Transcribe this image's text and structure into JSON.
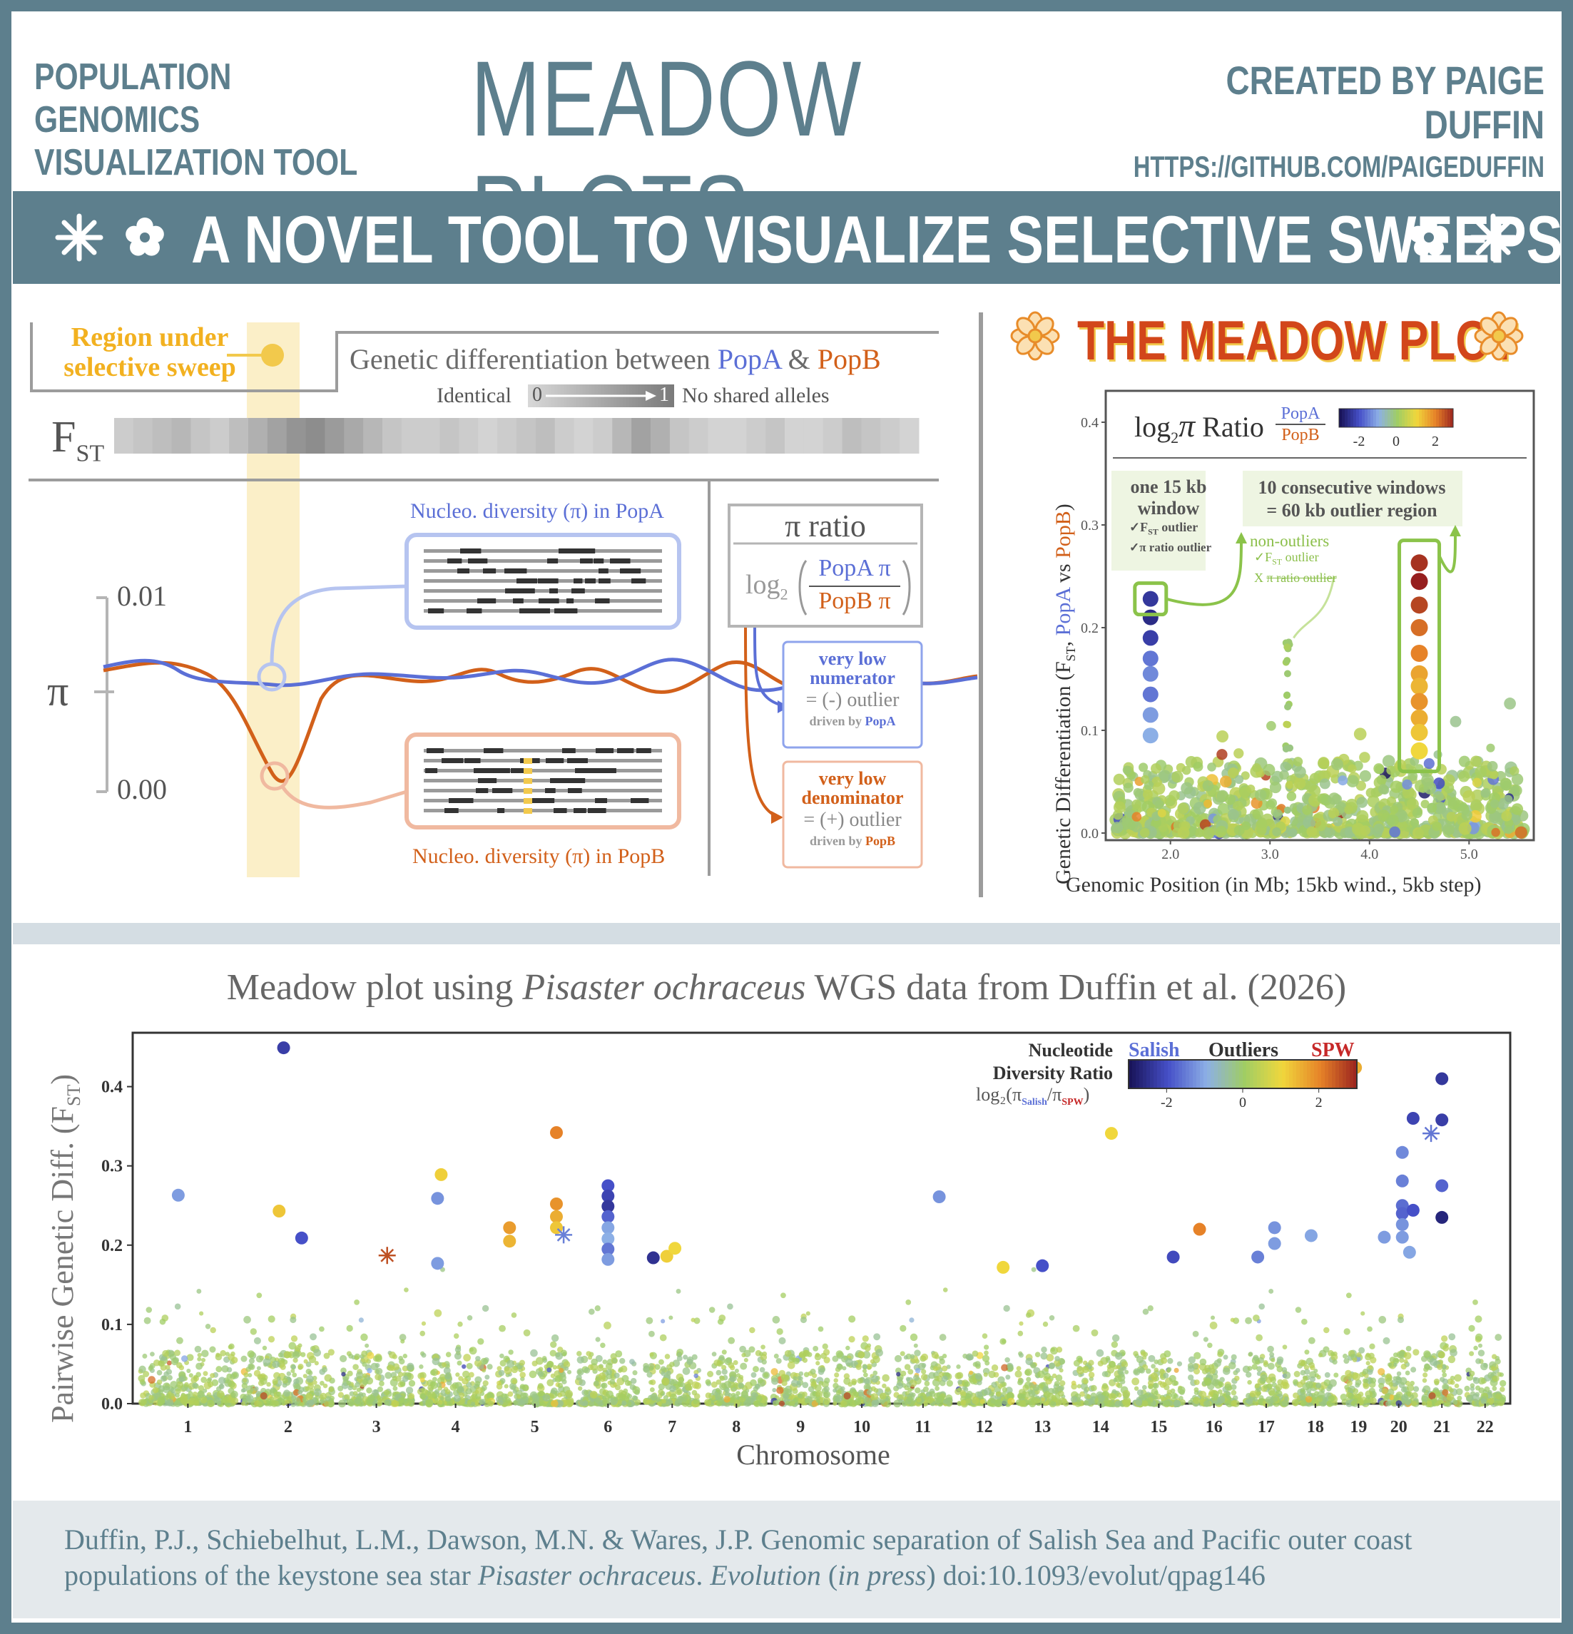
{
  "header": {
    "left_line1": "POPULATION GENOMICS",
    "left_line2": "VISUALIZATION TOOL",
    "title": "MEADOW PLOTS",
    "right_line1": "CREATED BY PAIGE DUFFIN",
    "right_line2": "HTTPS://GITHUB.COM/PAIGEDUFFIN"
  },
  "banner": {
    "text": "A NOVEL TOOL TO VISUALIZE SELECTIVE SWEEPS"
  },
  "colors": {
    "slate": "#5d7f8d",
    "popA": "#5b6fd6",
    "popB": "#d2601a",
    "sweep": "#f5d96b",
    "green": "#9ccc5a"
  },
  "diagram": {
    "region_label_1": "Region under",
    "region_label_2": "selective sweep",
    "fst_heading_prefix": "Genetic differentiation between",
    "popA": "PopA",
    "amp": "&",
    "popB": "PopB",
    "identical": "Identical",
    "zero": "0",
    "one": "1",
    "no_shared": "No shared alleles",
    "fst_label": "F",
    "fst_sub": "ST",
    "fst_shades": [
      0.15,
      0.2,
      0.25,
      0.3,
      0.2,
      0.15,
      0.25,
      0.35,
      0.45,
      0.55,
      0.6,
      0.5,
      0.4,
      0.3,
      0.2,
      0.15,
      0.15,
      0.2,
      0.15,
      0.1,
      0.15,
      0.2,
      0.25,
      0.15,
      0.1,
      0.15,
      0.3,
      0.45,
      0.35,
      0.2,
      0.15,
      0.1,
      0.1,
      0.15,
      0.2,
      0.1,
      0.1,
      0.15,
      0.25,
      0.2,
      0.15,
      0.1
    ],
    "pi_axis_top": "0.01",
    "pi_axis_bottom": "0.00",
    "pi_symbol": "π",
    "popA_diversity_prefix": "Nucleo. diversity (π) in",
    "popB_diversity_prefix": "Nucleo. diversity (π) in",
    "pi_ratio_title": "π ratio",
    "log2": "log",
    "log2_sub": "2",
    "ratio_num": "PopA π",
    "ratio_den": "PopB π",
    "low_num_1": "very low",
    "low_num_2": "numerator",
    "neg_outlier": "= (-) outlier",
    "driven_by": "driven by",
    "low_den_1": "very low",
    "low_den_2": "denominator",
    "pos_outlier": "= (+) outlier"
  },
  "meadow_example": {
    "title": "THE MEADOW PLOT",
    "legend_prefix": "log",
    "legend_sub": "2",
    "legend_pi": "π",
    "legend_ratio": "Ratio",
    "legend_num": "PopA",
    "legend_den": "PopB",
    "colorbar_ticks": [
      "-2",
      "0",
      "2"
    ],
    "callout_1_line1": "one 15 kb",
    "callout_1_line2": "window",
    "callout_1_check1": "✓F",
    "callout_1_check1_sub": "ST",
    "callout_1_check1_tail": " outlier",
    "callout_1_check2": "✓π ratio outlier",
    "callout_2_line1": "10 consecutive windows",
    "callout_2_line2": "= 60 kb outlier region",
    "nonout_title": "non-outliers",
    "nonout_check1": "✓F",
    "nonout_check1_sub": "ST",
    "nonout_check1_tail": " outlier",
    "nonout_check2_x": "X",
    "nonout_check2": "π ratio outlier",
    "ylabel_prefix": "Genetic Differentiation (F",
    "ylabel_sub": "ST",
    "ylabel_mid": ", ",
    "ylabel_popA": "PopA",
    "ylabel_vs": " vs ",
    "ylabel_popB": "PopB",
    "ylabel_end": ")",
    "xlabel": "Genomic Position (in Mb; 15kb wind., 5kb step)",
    "yticks": [
      "0.0",
      "0.1",
      "0.2",
      "0.3",
      "0.4"
    ],
    "xticks": [
      "2.0",
      "3.0",
      "4.0",
      "5.0"
    ]
  },
  "chart_data": {
    "type": "scatter",
    "title_prefix": "Meadow plot using ",
    "title_species": "Pisaster ochraceus",
    "title_suffix": " WGS data from Duffin et al. (2026)",
    "xlabel": "Chromosome",
    "ylabel_prefix": "Pairwise Genetic Diff. (F",
    "ylabel_sub": "ST",
    "ylabel_end": ")",
    "ylim": [
      0,
      0.45
    ],
    "yticks": [
      "0.0",
      "0.1",
      "0.2",
      "0.3",
      "0.4"
    ],
    "ytick_values": [
      0,
      0.1,
      0.2,
      0.3,
      0.4
    ],
    "categories": [
      "1",
      "2",
      "3",
      "4",
      "5",
      "6",
      "7",
      "8",
      "9",
      "10",
      "11",
      "12",
      "13",
      "14",
      "15",
      "16",
      "17",
      "18",
      "19",
      "20",
      "21",
      "22"
    ],
    "chrom_widths": [
      1.6,
      1.5,
      1.2,
      1.2,
      1.2,
      1.0,
      0.9,
      1.0,
      0.9,
      0.9,
      0.9,
      0.9,
      0.8,
      0.9,
      0.8,
      0.8,
      0.7,
      0.7,
      0.5,
      0.6,
      0.6,
      0.6
    ],
    "legend_title_1": "Nucleotide",
    "legend_title_2": "Diversity Ratio",
    "legend_formula": "log₂(π",
    "legend_formula_salish": "Salish",
    "legend_formula_sep": "/π",
    "legend_formula_spw": "SPW",
    "legend_formula_end": ")",
    "legend_salish": "Salish",
    "legend_outliers": "Outliers",
    "legend_spw": "SPW",
    "colorbar_ticks": [
      "-2",
      "0",
      "2"
    ],
    "outliers": [
      {
        "chrom": 1,
        "pos": 0.4,
        "fst": 0.263,
        "ratio": -1.2
      },
      {
        "chrom": 2,
        "pos": 0.45,
        "fst": 0.449,
        "ratio": -2.3
      },
      {
        "chrom": 2,
        "pos": 0.4,
        "fst": 0.243,
        "ratio": 1.2
      },
      {
        "chrom": 2,
        "pos": 0.65,
        "fst": 0.209,
        "ratio": -2.0
      },
      {
        "chrom": 3,
        "pos": 0.65,
        "fst": 0.187,
        "ratio": 2.5,
        "star": true
      },
      {
        "chrom": 4,
        "pos": 0.25,
        "fst": 0.259,
        "ratio": -1.3
      },
      {
        "chrom": 4,
        "pos": 0.3,
        "fst": 0.289,
        "ratio": 1.1
      },
      {
        "chrom": 4,
        "pos": 0.25,
        "fst": 0.177,
        "ratio": -1.2
      },
      {
        "chrom": 5,
        "pos": 0.15,
        "fst": 0.222,
        "ratio": 1.7
      },
      {
        "chrom": 5,
        "pos": 0.15,
        "fst": 0.205,
        "ratio": 1.4
      },
      {
        "chrom": 5,
        "pos": 0.8,
        "fst": 0.342,
        "ratio": 2.0
      },
      {
        "chrom": 5,
        "pos": 0.8,
        "fst": 0.252,
        "ratio": 1.8
      },
      {
        "chrom": 5,
        "pos": 0.8,
        "fst": 0.236,
        "ratio": 1.5
      },
      {
        "chrom": 5,
        "pos": 0.8,
        "fst": 0.222,
        "ratio": 1.2
      },
      {
        "chrom": 5,
        "pos": 0.9,
        "fst": 0.213,
        "ratio": -1.5,
        "star": true
      },
      {
        "chrom": 6,
        "pos": 0.5,
        "fst": 0.275,
        "ratio": -2.0
      },
      {
        "chrom": 6,
        "pos": 0.5,
        "fst": 0.262,
        "ratio": -2.2
      },
      {
        "chrom": 6,
        "pos": 0.5,
        "fst": 0.249,
        "ratio": -2.4
      },
      {
        "chrom": 6,
        "pos": 0.5,
        "fst": 0.236,
        "ratio": -1.8
      },
      {
        "chrom": 6,
        "pos": 0.5,
        "fst": 0.222,
        "ratio": -1.1
      },
      {
        "chrom": 6,
        "pos": 0.5,
        "fst": 0.208,
        "ratio": -1.0
      },
      {
        "chrom": 6,
        "pos": 0.5,
        "fst": 0.195,
        "ratio": -1.6
      },
      {
        "chrom": 6,
        "pos": 0.5,
        "fst": 0.182,
        "ratio": -1.2
      },
      {
        "chrom": 7,
        "pos": 0.15,
        "fst": 0.184,
        "ratio": -2.5
      },
      {
        "chrom": 7,
        "pos": 0.4,
        "fst": 0.186,
        "ratio": 1.1
      },
      {
        "chrom": 7,
        "pos": 0.55,
        "fst": 0.196,
        "ratio": 1.0
      },
      {
        "chrom": 11,
        "pos": 0.8,
        "fst": 0.261,
        "ratio": -1.3
      },
      {
        "chrom": 12,
        "pos": 0.85,
        "fst": 0.172,
        "ratio": 1.0
      },
      {
        "chrom": 13,
        "pos": 0.5,
        "fst": 0.174,
        "ratio": -2.0
      },
      {
        "chrom": 14,
        "pos": 0.7,
        "fst": 0.341,
        "ratio": 1.0
      },
      {
        "chrom": 15,
        "pos": 0.8,
        "fst": 0.185,
        "ratio": -2.1
      },
      {
        "chrom": 16,
        "pos": 0.2,
        "fst": 0.22,
        "ratio": 2.0
      },
      {
        "chrom": 17,
        "pos": 0.3,
        "fst": 0.185,
        "ratio": -1.5
      },
      {
        "chrom": 17,
        "pos": 0.7,
        "fst": 0.222,
        "ratio": -1.3
      },
      {
        "chrom": 17,
        "pos": 0.7,
        "fst": 0.202,
        "ratio": -1.2
      },
      {
        "chrom": 18,
        "pos": 0.4,
        "fst": 0.212,
        "ratio": -1.1
      },
      {
        "chrom": 19,
        "pos": 0.4,
        "fst": 0.424,
        "ratio": 1.5
      },
      {
        "chrom": 20,
        "pos": 0.1,
        "fst": 0.21,
        "ratio": -1.2
      },
      {
        "chrom": 20,
        "pos": 0.6,
        "fst": 0.317,
        "ratio": -1.4
      },
      {
        "chrom": 20,
        "pos": 0.6,
        "fst": 0.281,
        "ratio": -1.5
      },
      {
        "chrom": 20,
        "pos": 0.6,
        "fst": 0.25,
        "ratio": -1.7
      },
      {
        "chrom": 20,
        "pos": 0.6,
        "fst": 0.24,
        "ratio": -1.8
      },
      {
        "chrom": 20,
        "pos": 0.6,
        "fst": 0.226,
        "ratio": -1.3
      },
      {
        "chrom": 20,
        "pos": 0.6,
        "fst": 0.21,
        "ratio": -1.2
      },
      {
        "chrom": 20,
        "pos": 0.8,
        "fst": 0.191,
        "ratio": -1.1
      },
      {
        "chrom": 20,
        "pos": 0.9,
        "fst": 0.36,
        "ratio": -2.2
      },
      {
        "chrom": 20,
        "pos": 0.9,
        "fst": 0.244,
        "ratio": -2.0
      },
      {
        "chrom": 21,
        "pos": 0.5,
        "fst": 0.41,
        "ratio": -2.4
      },
      {
        "chrom": 21,
        "pos": 0.5,
        "fst": 0.358,
        "ratio": -2.3
      },
      {
        "chrom": 21,
        "pos": 0.2,
        "fst": 0.341,
        "ratio": -1.6,
        "star": true
      },
      {
        "chrom": 21,
        "pos": 0.5,
        "fst": 0.275,
        "ratio": -1.8
      },
      {
        "chrom": 21,
        "pos": 0.5,
        "fst": 0.235,
        "ratio": -2.7
      }
    ]
  },
  "footer": {
    "line1": "Duffin, P.J., Schiebelhut, L.M., Dawson, M.N. & Wares, J.P. Genomic separation of Salish Sea and Pacific outer coast",
    "line2_prefix": "populations of the keystone sea star ",
    "line2_species": "Pisaster ochraceus",
    "line2_sep": ". ",
    "line2_journal": "Evolution",
    "line2_paren_open": " (",
    "line2_press": "in press",
    "line2_paren_close": ") doi:10.1093/evolut/qpag146"
  }
}
